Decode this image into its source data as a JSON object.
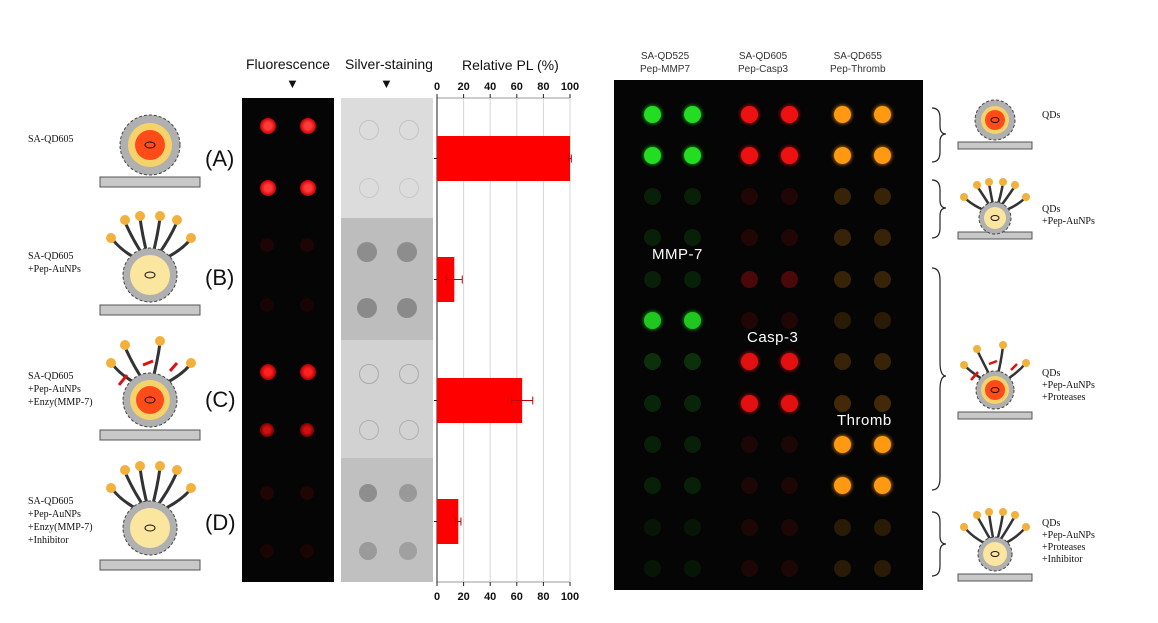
{
  "column_headers": {
    "fluorescence": "Fluorescence",
    "silver": "Silver-staining",
    "relative_pl": "Relative PL (%)"
  },
  "rows": [
    {
      "letter": "(A)",
      "label": "SA-QD605"
    },
    {
      "letter": "(B)",
      "label": "SA-QD605\n+Pep-AuNPs"
    },
    {
      "letter": "(C)",
      "label": "SA-QD605\n+Pep-AuNPs\n+Enzy(MMP-7)"
    },
    {
      "letter": "(D)",
      "label": "SA-QD605\n+Pep-AuNPs\n+Enzy(MMP-7)\n+Inhibitor"
    }
  ],
  "chart_data": {
    "type": "bar",
    "orientation": "horizontal",
    "title": "Relative PL (%)",
    "categories": [
      "(A)",
      "(B)",
      "(C)",
      "(D)"
    ],
    "values": [
      100,
      13,
      64,
      16
    ],
    "errors": [
      1,
      6,
      8,
      2
    ],
    "xlim": [
      0,
      100
    ],
    "xticks": [
      "0",
      "20",
      "40",
      "60",
      "80",
      "100"
    ],
    "bar_color": "#ff0000"
  },
  "right_panel": {
    "headers": [
      {
        "line1": "SA-QD525",
        "line2": "Pep-MMP7",
        "color": "#22dd22"
      },
      {
        "line1": "SA-QD605",
        "line2": "Pep-Casp3",
        "color": "#ee1111"
      },
      {
        "line1": "SA-QD655",
        "line2": "Pep-Thromb",
        "color": "#ff9911"
      }
    ],
    "overlay_labels": {
      "mmp7": "MMP-7",
      "casp3": "Casp-3",
      "thromb": "Thromb"
    },
    "brace_labels": [
      "QDs",
      "QDs\n+Pep-AuNPs",
      "QDs\n+Pep-AuNPs\n+Proteases",
      "QDs\n+Pep-AuNPs\n+Proteases\n+Inhibitor"
    ],
    "spot_brightness": [
      [
        1.0,
        1.0,
        1.0
      ],
      [
        1.0,
        1.0,
        1.0
      ],
      [
        0.12,
        0.12,
        0.2
      ],
      [
        0.12,
        0.12,
        0.2
      ],
      [
        0.12,
        0.3,
        0.2
      ],
      [
        0.9,
        0.12,
        0.15
      ],
      [
        0.2,
        0.95,
        0.2
      ],
      [
        0.15,
        0.95,
        0.25
      ],
      [
        0.12,
        0.1,
        1.0
      ],
      [
        0.12,
        0.1,
        1.0
      ],
      [
        0.08,
        0.1,
        0.15
      ],
      [
        0.08,
        0.1,
        0.15
      ]
    ]
  }
}
